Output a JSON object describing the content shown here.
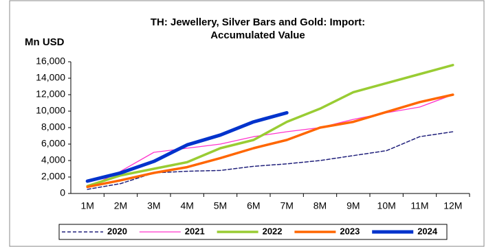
{
  "chart_data": {
    "type": "line",
    "title": [
      "TH: Jewellery, Silver Bars and Gold: Import:",
      "Accumulated Value"
    ],
    "y_label": "Mn USD",
    "categories": [
      "1M",
      "2M",
      "3M",
      "4M",
      "5M",
      "6M",
      "7M",
      "8M",
      "9M",
      "10M",
      "11M",
      "12M"
    ],
    "series": [
      {
        "name": "2020",
        "color": "#1f1f7a",
        "values": [
          500,
          1200,
          2500,
          2700,
          2800,
          3300,
          3600,
          4000,
          4600,
          5200,
          6900,
          7500
        ]
      },
      {
        "name": "2021",
        "color": "#ff33cc",
        "values": [
          700,
          2700,
          5000,
          5500,
          6000,
          6900,
          7500,
          8000,
          9000,
          9800,
          10500,
          12000
        ]
      },
      {
        "name": "2022",
        "color": "#99cc33",
        "values": [
          900,
          2200,
          3000,
          3800,
          5500,
          6500,
          8700,
          10300,
          12300,
          13400,
          14500,
          15600
        ]
      },
      {
        "name": "2023",
        "color": "#ff6600",
        "values": [
          800,
          1600,
          2500,
          3200,
          4300,
          5500,
          6500,
          8000,
          8700,
          9900,
          11100,
          12000
        ]
      },
      {
        "name": "2024",
        "color": "#0033cc",
        "values": [
          1500,
          2500,
          3900,
          5900,
          7100,
          8700,
          9800,
          null,
          null,
          null,
          null,
          null
        ]
      }
    ],
    "ylim": [
      0,
      16000
    ],
    "yticks": [
      0,
      {
        "value": 2000,
        "label": "2,000"
      },
      {
        "value": 4000,
        "label": "4,000"
      },
      {
        "value": 6000,
        "label": "6,000"
      },
      {
        "value": 8000,
        "label": "8,000"
      },
      {
        "value": 10000,
        "label": "10,000"
      },
      {
        "value": 12000,
        "label": "12,000"
      },
      {
        "value": 14000,
        "label": "14,000"
      },
      {
        "value": 16000,
        "label": "16,000"
      }
    ],
    "grid": false,
    "legend": "bottom"
  }
}
